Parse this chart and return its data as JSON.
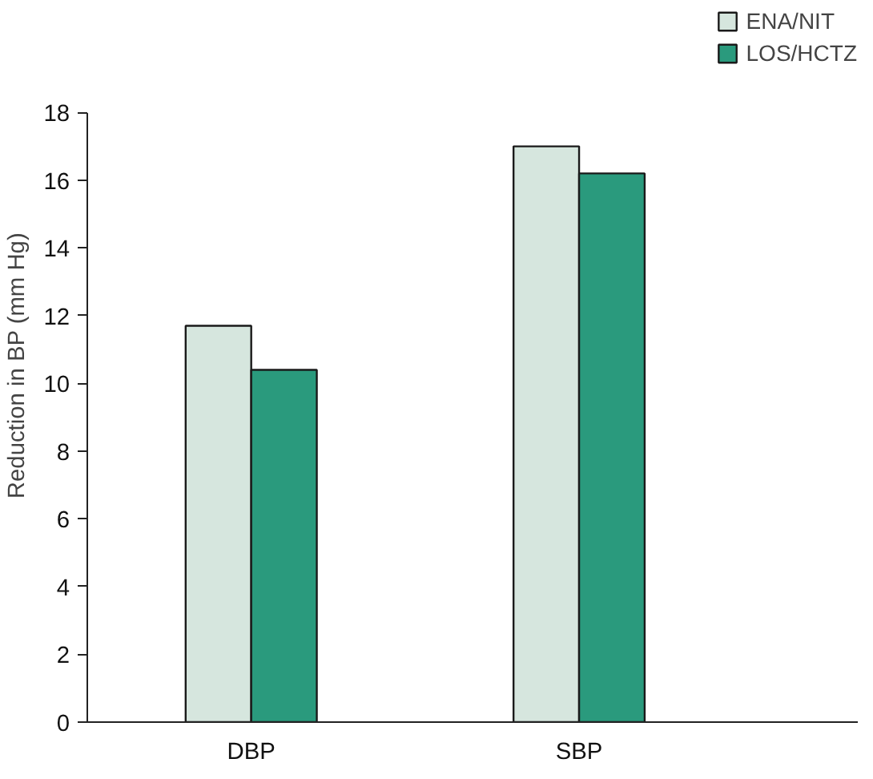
{
  "chart_data": {
    "type": "bar",
    "ylabel": "Reduction in BP (mm Hg)",
    "categories": [
      "DBP",
      "SBP"
    ],
    "series": [
      {
        "name": "ENA/NIT",
        "color": "#d6e6de",
        "values": [
          11.7,
          17.0
        ]
      },
      {
        "name": "LOS/HCTZ",
        "color": "#2a9a7d",
        "values": [
          10.4,
          16.2
        ]
      }
    ],
    "ylim": [
      0,
      18
    ],
    "yticks": [
      0,
      2,
      4,
      6,
      8,
      10,
      12,
      14,
      16,
      18
    ],
    "grid": false,
    "legend": "top right"
  }
}
